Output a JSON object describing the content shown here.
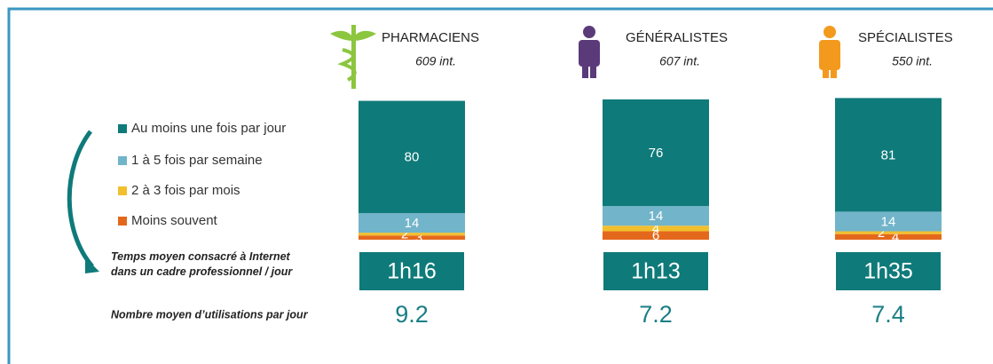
{
  "chart_data": {
    "type": "bar",
    "stacked": true,
    "ylim": [
      0,
      100
    ],
    "categories": [
      "PHARMACIENS",
      "GÉNÉRALISTES",
      "SPÉCIALISTES"
    ],
    "counts": [
      "609 int.",
      "607 int.",
      "550 int."
    ],
    "series": [
      {
        "name": "Au moins une fois par jour",
        "color": "#0f7a7a",
        "values": [
          80,
          76,
          81
        ]
      },
      {
        "name": "1 à 5 fois par semaine",
        "color": "#72b4c9",
        "values": [
          14,
          14,
          14
        ]
      },
      {
        "name": "2 à 3 fois par mois",
        "color": "#f2c02e",
        "values": [
          2,
          4,
          2
        ]
      },
      {
        "name": "Moins souvent",
        "color": "#e4681c",
        "values": [
          3,
          6,
          4
        ]
      }
    ],
    "time_label": "Temps moyen consacré à Internet dans un cadre professionnel / jour",
    "times": [
      "1h16",
      "1h13",
      "1h35"
    ],
    "avg_label": "Nombre moyen d’utilisations par jour",
    "averages": [
      9.2,
      7.2,
      7.4
    ]
  }
}
